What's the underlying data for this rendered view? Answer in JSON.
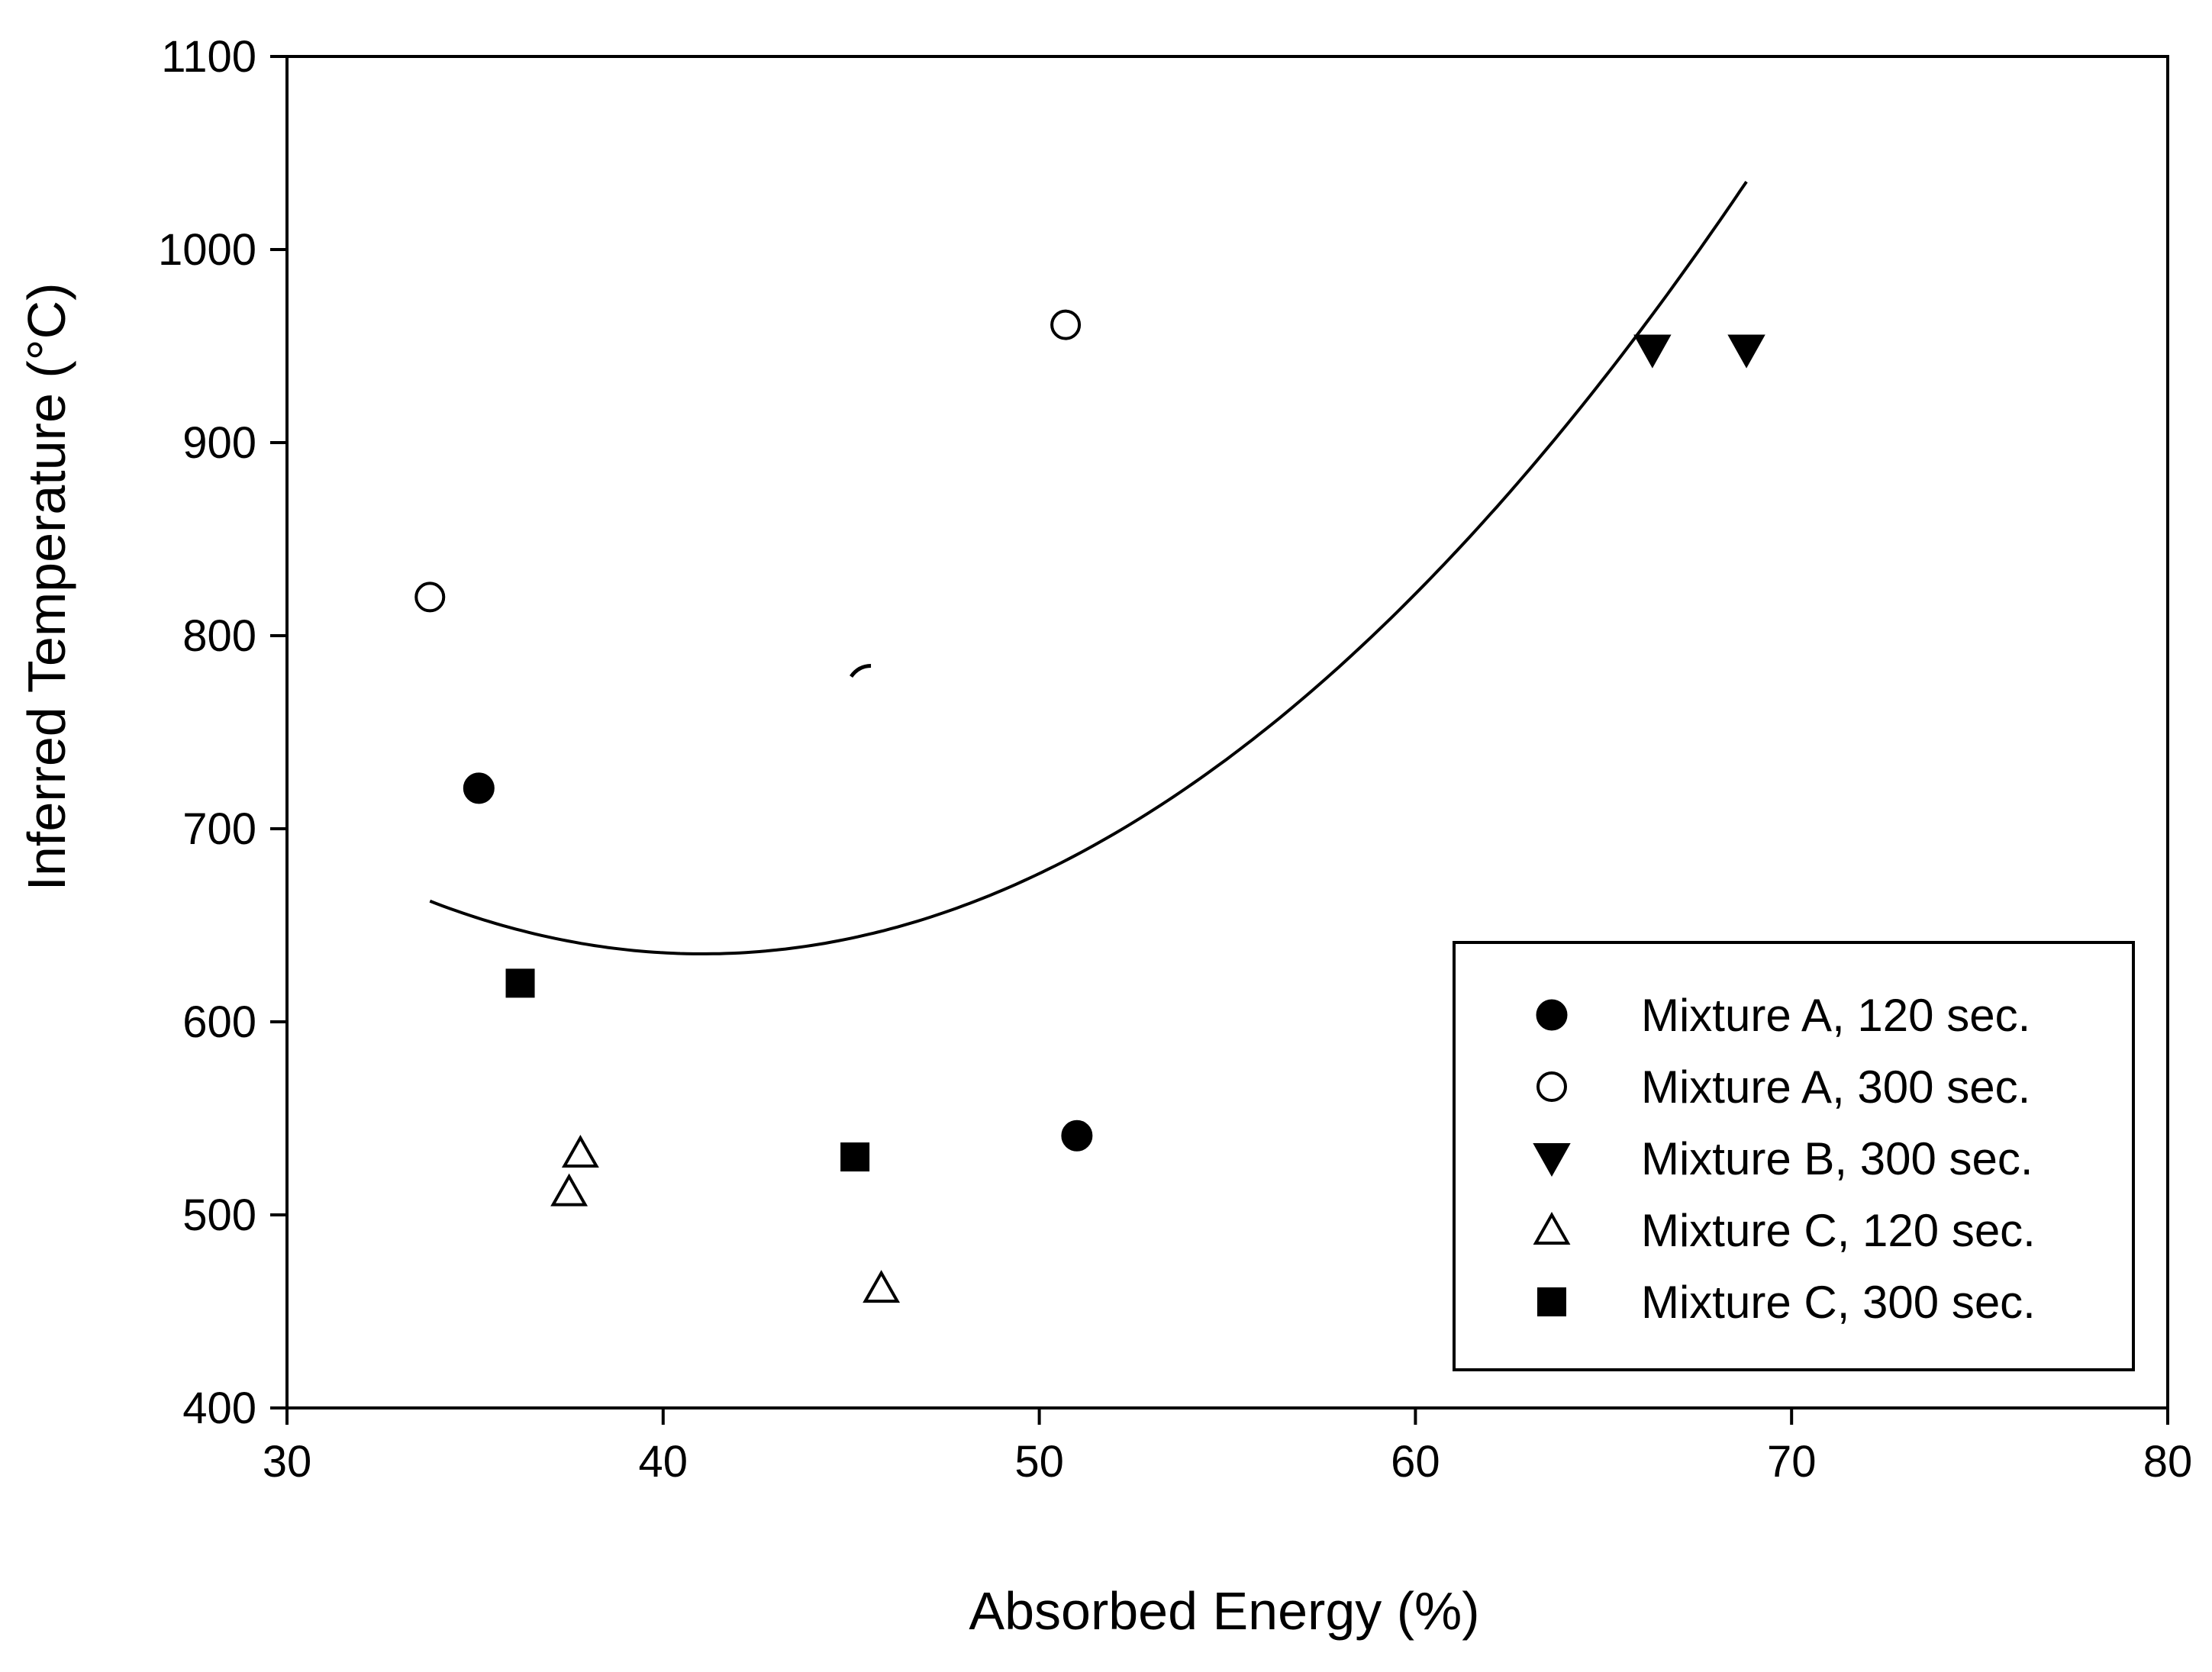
{
  "chart_data": {
    "type": "scatter",
    "title": "",
    "xlabel": "Absorbed Energy (%)",
    "ylabel": "Inferred Temperature (°C)",
    "xlim": [
      30,
      80
    ],
    "ylim": [
      400,
      1100
    ],
    "xticks": [
      30,
      40,
      50,
      60,
      70,
      80
    ],
    "yticks": [
      400,
      500,
      600,
      700,
      800,
      900,
      1000,
      1100
    ],
    "grid": false,
    "legend_position": "bottom-right",
    "series": [
      {
        "name": "Mixture A, 120 sec.",
        "marker": "circle-filled",
        "x": [
          35.1,
          51.0
        ],
        "y": [
          721,
          541
        ]
      },
      {
        "name": "Mixture A, 300 sec.",
        "marker": "circle-open",
        "x": [
          33.8,
          50.7
        ],
        "y": [
          820,
          961
        ]
      },
      {
        "name": "Mixture B, 300 sec.",
        "marker": "triangle-down-filled",
        "x": [
          66.3,
          68.8
        ],
        "y": [
          948,
          948
        ]
      },
      {
        "name": "Mixture C, 120 sec.",
        "marker": "triangle-up-open",
        "x": [
          37.8,
          37.5,
          45.8
        ],
        "y": [
          532,
          512,
          462
        ]
      },
      {
        "name": "Mixture C, 300 sec.",
        "marker": "square-filled",
        "x": [
          36.2,
          45.1
        ],
        "y": [
          620,
          530
        ]
      }
    ],
    "fit_curve": {
      "type": "quadratic",
      "x_range": [
        33.8,
        68.8
      ],
      "points": [
        [
          33.8,
          663
        ],
        [
          41.3,
          633
        ],
        [
          50.0,
          680
        ],
        [
          66.3,
          960
        ],
        [
          68.8,
          1040
        ]
      ]
    },
    "stray_mark": {
      "x": 45.2,
      "y": 782
    }
  }
}
